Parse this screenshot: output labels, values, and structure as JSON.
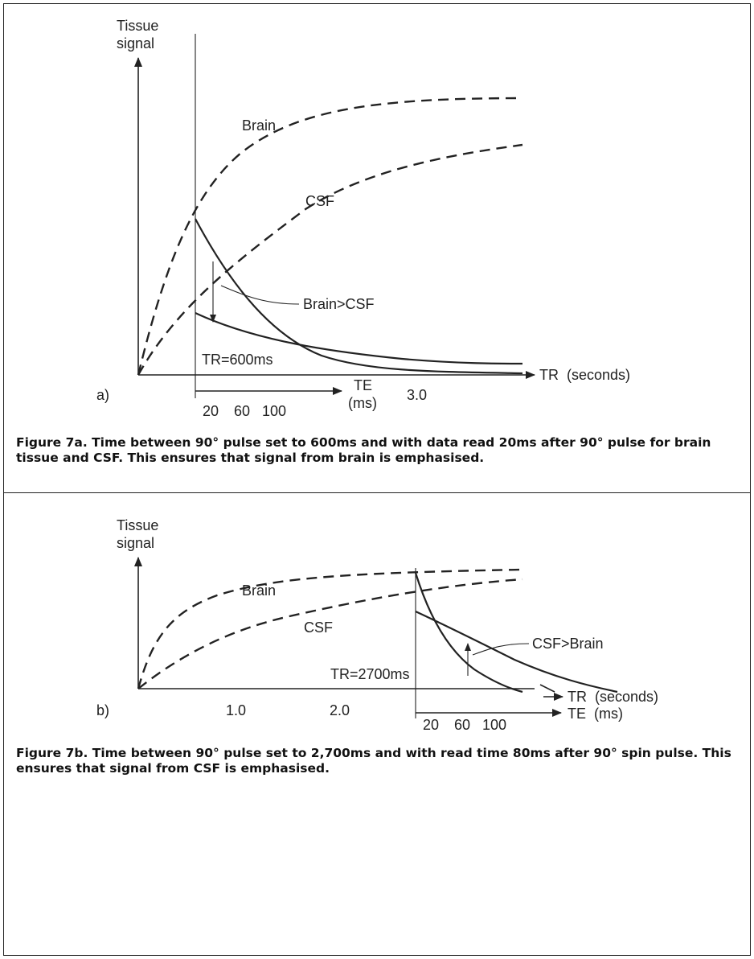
{
  "figure_a": {
    "panel_label": "a)",
    "y_axis_line1": "Tissue",
    "y_axis_line2": "signal",
    "curve_brain": "Brain",
    "curve_csf": "CSF",
    "comparison": "Brain>CSF",
    "tr_value": "TR=600ms",
    "tr_axis": "TR  (seconds)",
    "te_axis_line1": "TE",
    "te_axis_line2": "(ms)",
    "tick_3": "3.0",
    "te_ticks": [
      "20",
      "60",
      "100"
    ],
    "caption": "Figure 7a. Time between 90° pulse set to 600ms and with data read 20ms after 90° pulse for brain tissue and CSF. This ensures that signal from brain is emphasised."
  },
  "figure_b": {
    "panel_label": "b)",
    "y_axis_line1": "Tissue",
    "y_axis_line2": "signal",
    "curve_brain": "Brain",
    "curve_csf": "CSF",
    "comparison": "CSF>Brain",
    "tr_value": "TR=2700ms",
    "tr_axis": "TR  (seconds)",
    "te_axis": "TE  (ms)",
    "tr_ticks": [
      "1.0",
      "2.0"
    ],
    "te_ticks": [
      "20",
      "60",
      "100"
    ],
    "caption": "Figure 7b. Time between 90° pulse set to 2,700ms and with read time 80ms after 90° spin pulse. This ensures that signal from CSF is emphasised."
  }
}
